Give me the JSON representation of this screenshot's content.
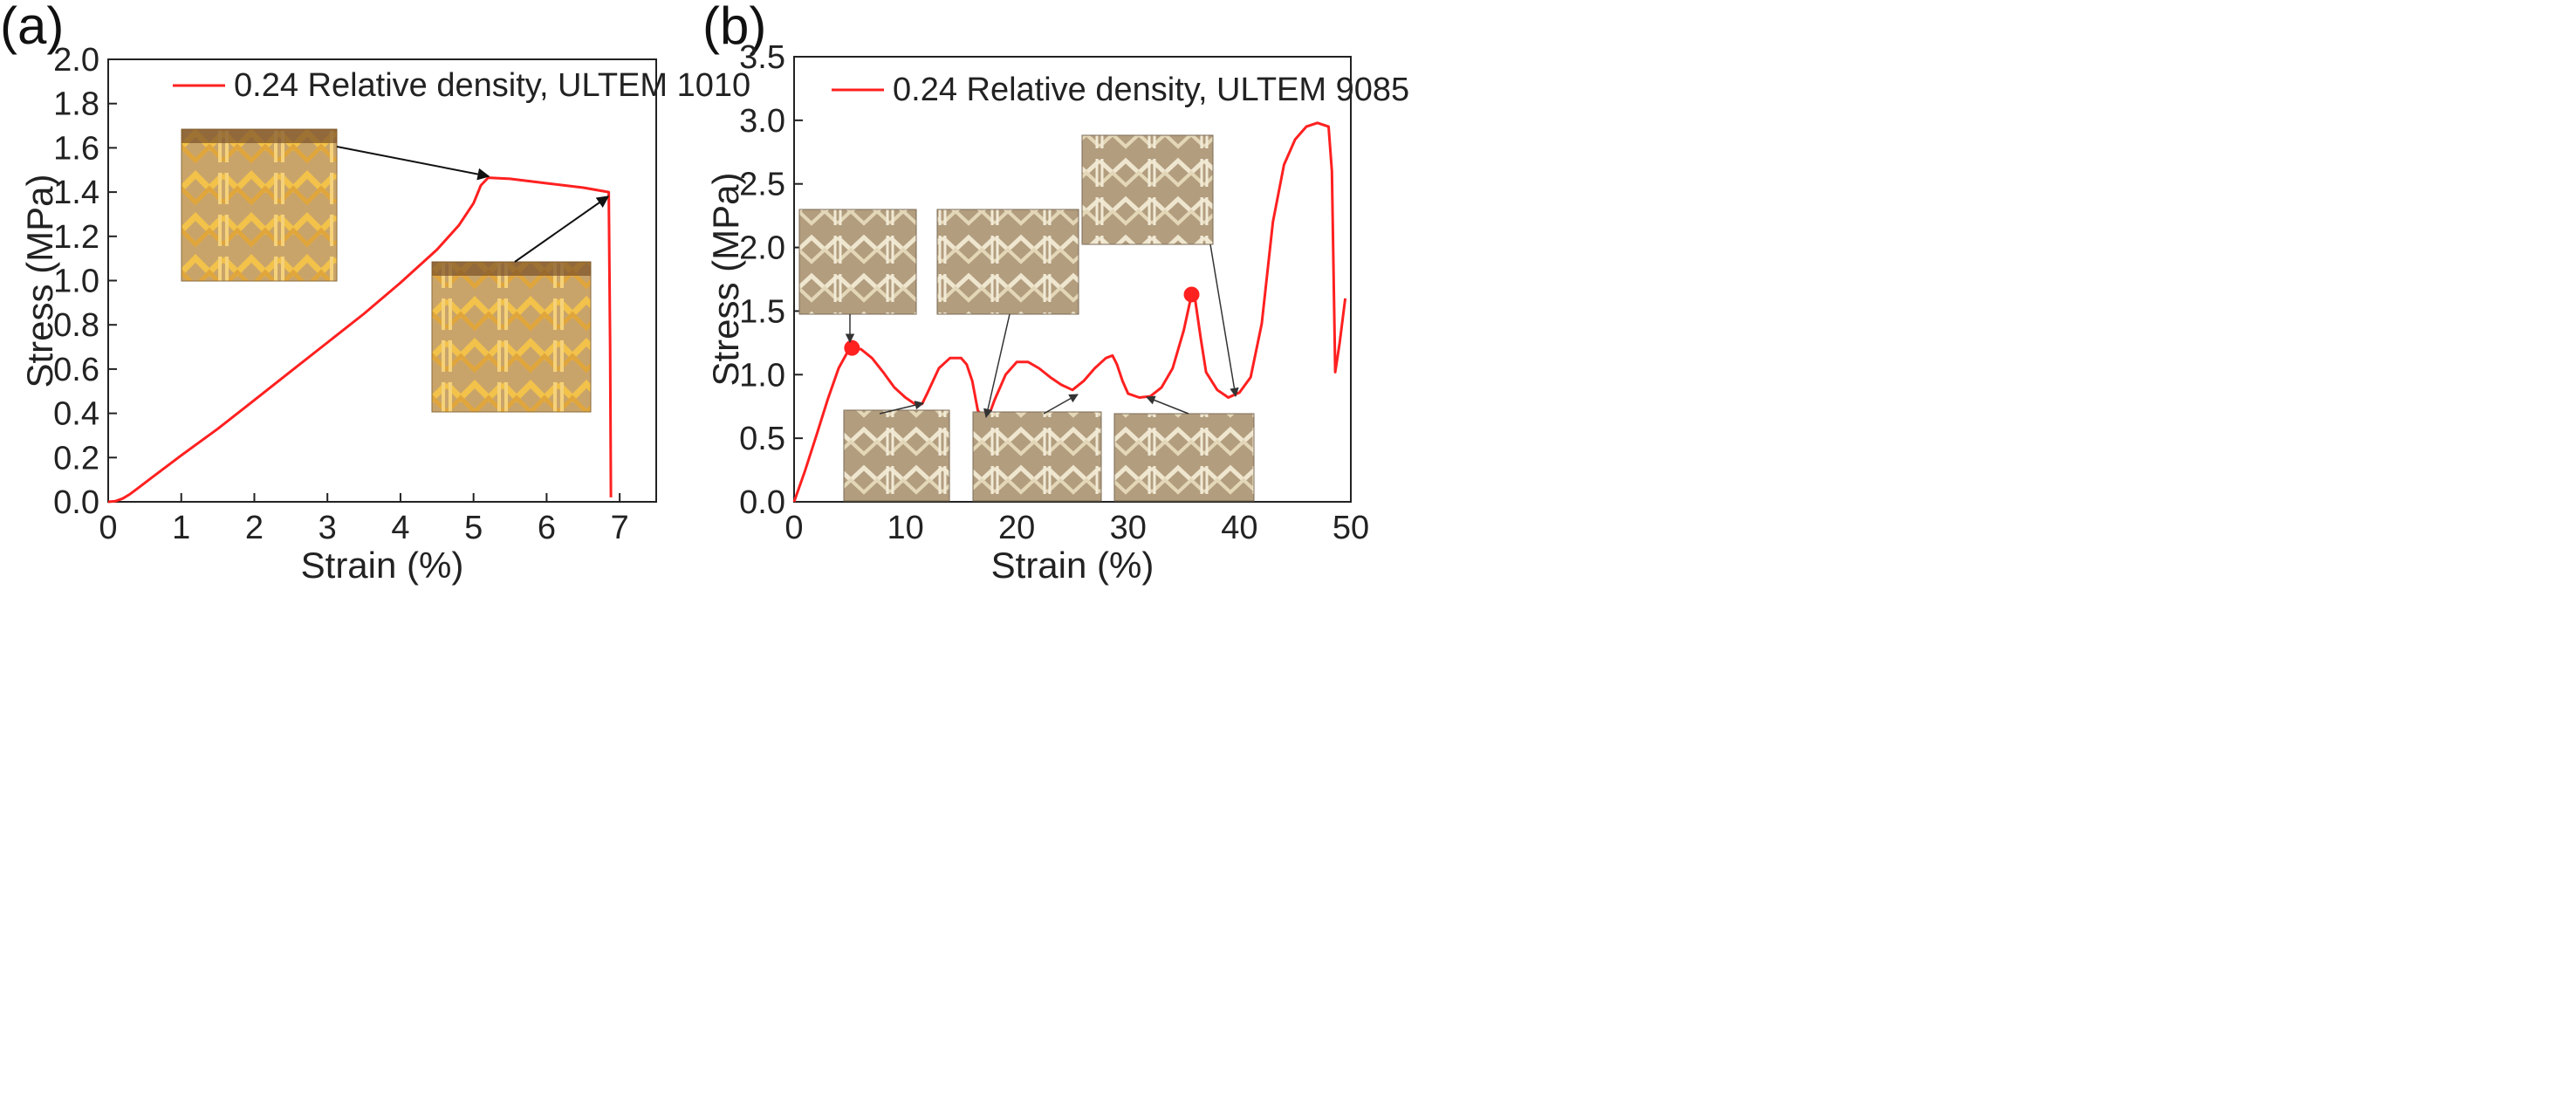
{
  "chart_data": [
    {
      "type": "line",
      "panel_label": "(a)",
      "xlabel": "Strain (%)",
      "ylabel": "Stress (MPa)",
      "xlim": [
        0,
        7.5
      ],
      "ylim": [
        0,
        2.0
      ],
      "xticks": [
        0,
        1,
        2,
        3,
        4,
        5,
        6,
        7
      ],
      "yticks": [
        0.0,
        0.2,
        0.4,
        0.6,
        0.8,
        1.0,
        1.2,
        1.4,
        1.6,
        1.8,
        2.0
      ],
      "ytick_labels": [
        "0.0",
        "0.2",
        "0.4",
        "0.6",
        "0.8",
        "1.0",
        "1.2",
        "1.4",
        "1.6",
        "1.8",
        "2.0"
      ],
      "legend_position": "top",
      "series": [
        {
          "name": "0.24 Relative density, ULTEM 1010",
          "color": "#ff2020",
          "x": [
            0,
            0.1,
            0.2,
            0.3,
            0.4,
            0.6,
            1.0,
            1.5,
            2.0,
            2.5,
            3.0,
            3.5,
            4.0,
            4.5,
            4.8,
            5.0,
            5.1,
            5.2,
            5.5,
            6.0,
            6.5,
            6.85,
            6.87,
            6.88
          ],
          "values": [
            0,
            0.003,
            0.015,
            0.035,
            0.06,
            0.11,
            0.21,
            0.33,
            0.46,
            0.59,
            0.72,
            0.85,
            0.99,
            1.14,
            1.25,
            1.35,
            1.43,
            1.465,
            1.46,
            1.44,
            1.42,
            1.4,
            0.7,
            0.02
          ]
        }
      ],
      "annotations": [
        {
          "type": "arrow",
          "target": [
            5.2,
            1.465
          ],
          "label": "inset photo"
        },
        {
          "type": "arrow",
          "target": [
            6.85,
            1.4
          ],
          "label": "inset photo"
        }
      ]
    },
    {
      "type": "line",
      "panel_label": "(b)",
      "xlabel": "Strain (%)",
      "ylabel": "Stress (MPa)",
      "xlim": [
        0,
        50
      ],
      "ylim": [
        0,
        3.5
      ],
      "xticks": [
        0,
        10,
        20,
        30,
        40,
        50
      ],
      "yticks": [
        0.0,
        0.5,
        1.0,
        1.5,
        2.0,
        2.5,
        3.0,
        3.5
      ],
      "ytick_labels": [
        "0.0",
        "0.5",
        "1.0",
        "1.5",
        "2.0",
        "2.5",
        "3.0",
        "3.5"
      ],
      "legend_position": "top",
      "series": [
        {
          "name": "0.24 Relative density, ULTEM 9085",
          "color": "#ff2020",
          "x": [
            0,
            1,
            2,
            3,
            4,
            5,
            6,
            7,
            8,
            9,
            10,
            11,
            11.5,
            12,
            13,
            14,
            15,
            15.5,
            16,
            16.5,
            17,
            17.5,
            18,
            19,
            20,
            21,
            22,
            23,
            24,
            25,
            26,
            27,
            28,
            28.6,
            29,
            29.5,
            30,
            31,
            32,
            33,
            34,
            35,
            35.7,
            36,
            36.5,
            37,
            38,
            39,
            40,
            41,
            42,
            43,
            44,
            45,
            46,
            47,
            48,
            48.3,
            48.6,
            49,
            49.5
          ],
          "values": [
            0,
            0.25,
            0.52,
            0.8,
            1.05,
            1.21,
            1.2,
            1.13,
            1.02,
            0.9,
            0.82,
            0.76,
            0.77,
            0.86,
            1.05,
            1.13,
            1.13,
            1.08,
            0.95,
            0.72,
            0.66,
            0.68,
            0.8,
            1.0,
            1.1,
            1.1,
            1.05,
            0.98,
            0.92,
            0.88,
            0.95,
            1.05,
            1.13,
            1.15,
            1.08,
            0.95,
            0.85,
            0.82,
            0.83,
            0.9,
            1.05,
            1.35,
            1.63,
            1.6,
            1.3,
            1.02,
            0.88,
            0.82,
            0.86,
            0.98,
            1.4,
            2.2,
            2.65,
            2.85,
            2.95,
            2.98,
            2.95,
            2.6,
            1.02,
            1.25,
            1.6
          ]
        }
      ],
      "markers": [
        {
          "x": 5.2,
          "y": 1.21
        },
        {
          "x": 35.7,
          "y": 1.63
        }
      ],
      "annotations": [
        {
          "type": "arrow",
          "target": [
            5.2,
            1.21
          ],
          "label": "inset photo"
        },
        {
          "type": "arrow",
          "target": [
            11.5,
            0.77
          ],
          "label": "inset photo"
        },
        {
          "type": "arrow",
          "target": [
            17.2,
            0.66
          ],
          "label": "inset photo"
        },
        {
          "type": "arrow",
          "target": [
            26,
            0.9
          ],
          "label": "inset photo"
        },
        {
          "type": "arrow",
          "target": [
            32,
            0.82
          ],
          "label": "inset photo"
        },
        {
          "type": "arrow",
          "target": [
            39.5,
            0.82
          ],
          "label": "inset photo"
        }
      ]
    }
  ]
}
